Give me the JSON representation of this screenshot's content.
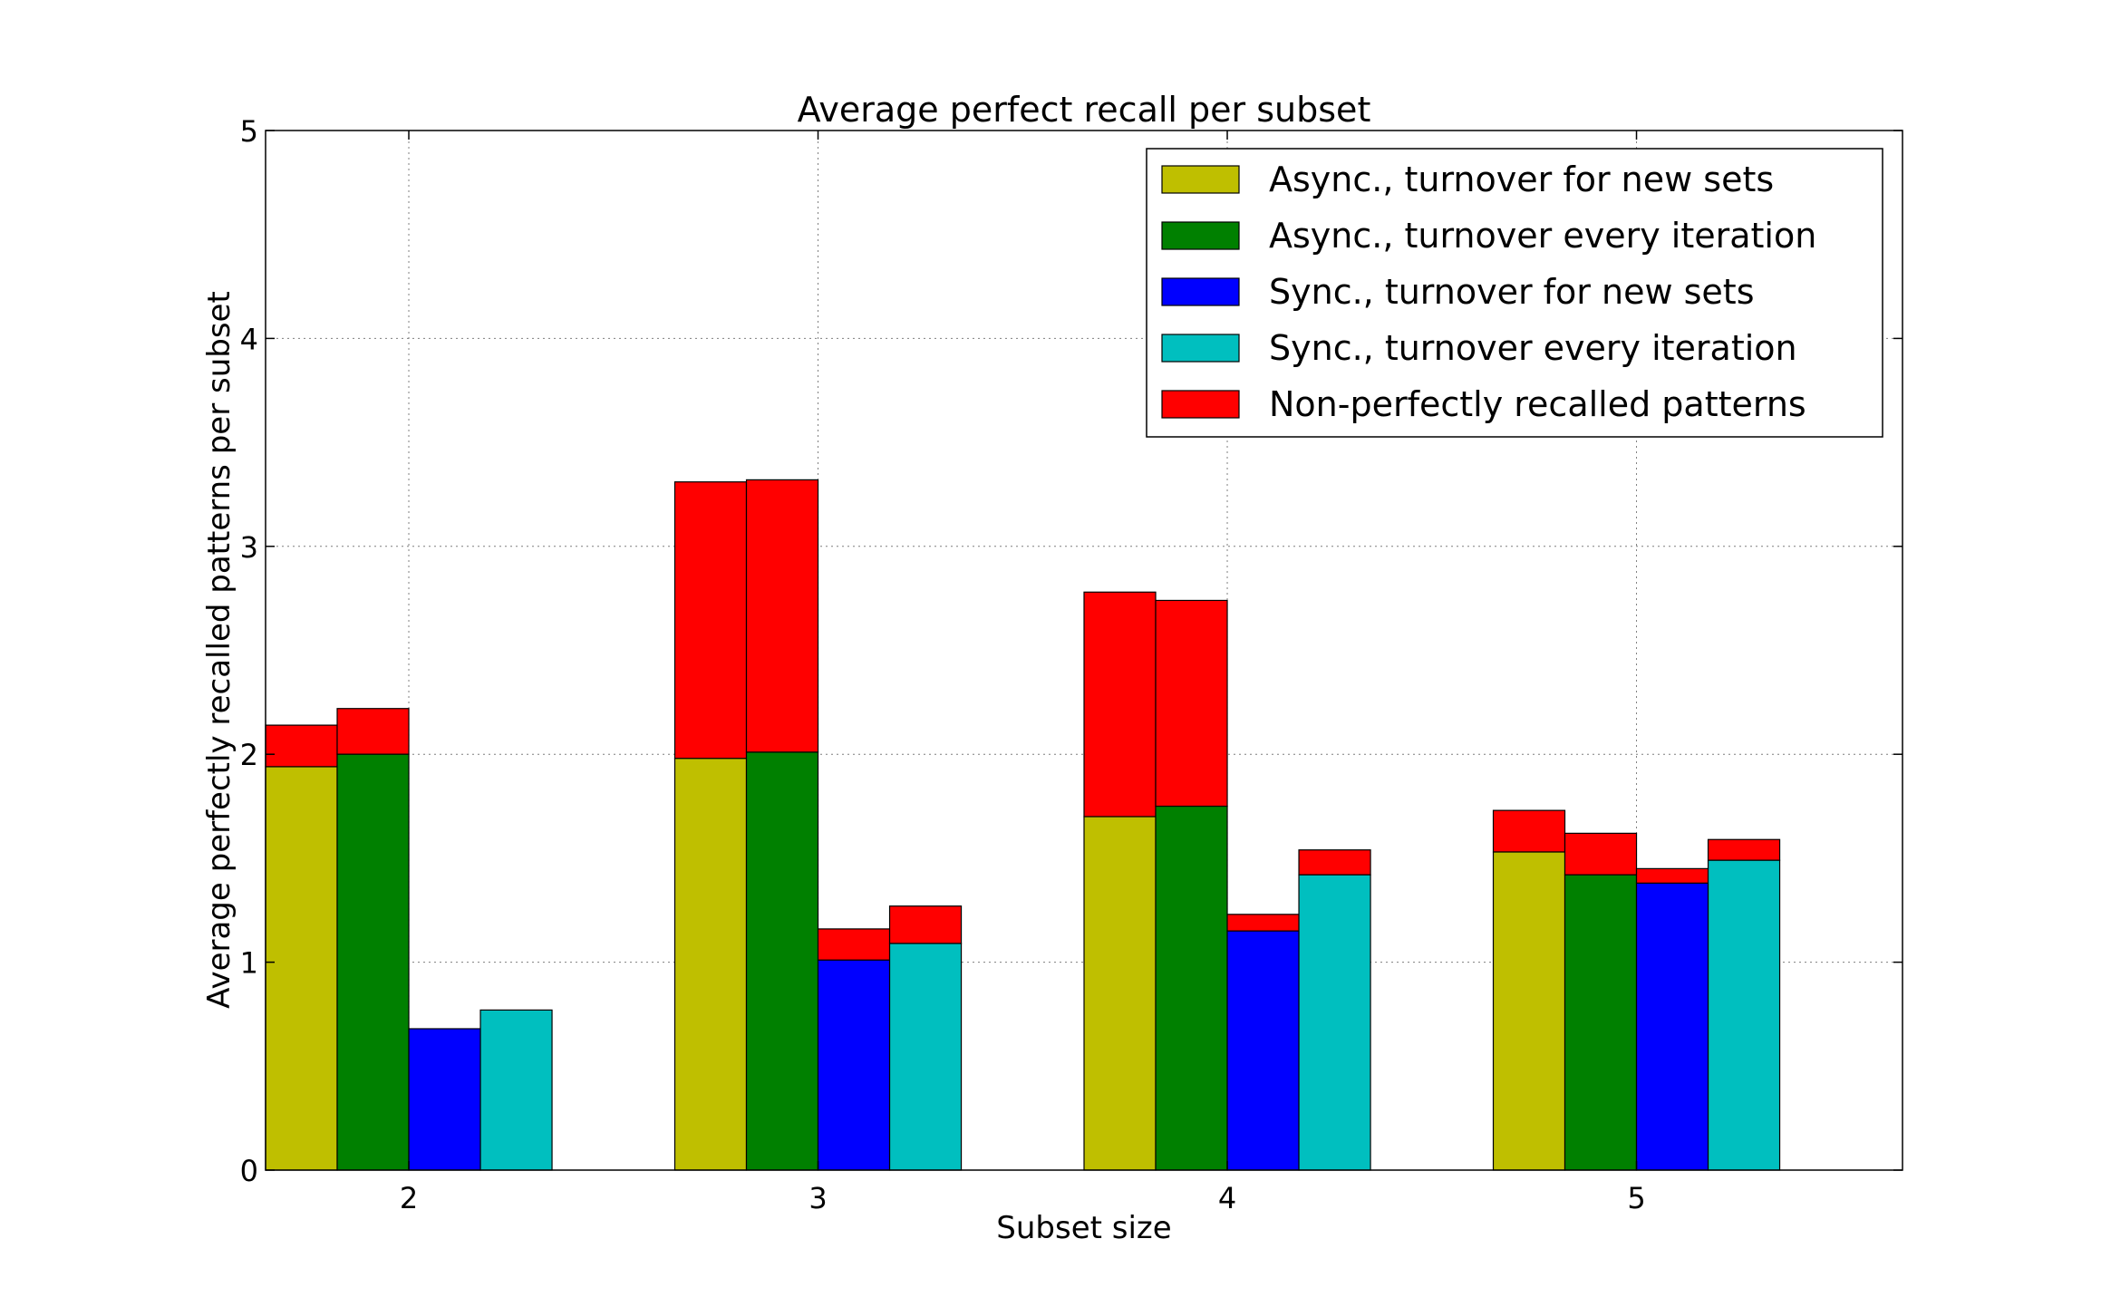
{
  "chart_data": {
    "type": "bar",
    "title": "Average perfect recall per subset",
    "xlabel": "Subset size",
    "ylabel": "Average perfectly recalled patterns per subset",
    "categories": [
      "2",
      "3",
      "4",
      "5"
    ],
    "xlim": [
      1.65,
      5.65
    ],
    "ylim": [
      0,
      5
    ],
    "yticks": [
      "0",
      "1",
      "2",
      "3",
      "4",
      "5"
    ],
    "grid": true,
    "legend_position": "top-right",
    "stacked": true,
    "series": [
      {
        "name": "Async., turnover for new sets",
        "color": "#bfbf00",
        "perfect": [
          1.94,
          1.98,
          1.7,
          1.53
        ],
        "total": [
          2.14,
          3.31,
          2.78,
          1.73
        ]
      },
      {
        "name": "Async., turnover every iteration",
        "color": "#008000",
        "perfect": [
          2.0,
          2.01,
          1.75,
          1.42
        ],
        "total": [
          2.22,
          3.32,
          2.74,
          1.62
        ]
      },
      {
        "name": "Sync., turnover for new sets",
        "color": "#0000ff",
        "perfect": [
          0.68,
          1.01,
          1.15,
          1.38
        ],
        "total": [
          0.68,
          1.16,
          1.23,
          1.45
        ]
      },
      {
        "name": "Sync., turnover every iteration",
        "color": "#00bfbf",
        "perfect": [
          0.77,
          1.09,
          1.42,
          1.49
        ],
        "total": [
          0.77,
          1.27,
          1.54,
          1.59
        ]
      }
    ],
    "overlay_series": {
      "name": "Non-perfectly recalled patterns",
      "color": "#ff0000"
    }
  }
}
